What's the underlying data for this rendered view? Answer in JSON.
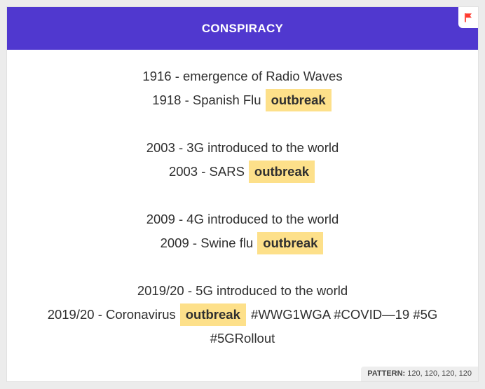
{
  "header": {
    "title": "CONSPIRACY",
    "flag_icon_color": "#ff3b30",
    "color": "#5038cf"
  },
  "entries": [
    {
      "line1": "1916 - emergence of Radio Waves",
      "line2_text": "1918 - Spanish Flu",
      "highlight": "outbreak"
    },
    {
      "line1": "2003 - 3G introduced to the world",
      "line2_text": "2003 - SARS",
      "highlight": "outbreak"
    },
    {
      "line1": "2009 - 4G introduced to the world",
      "line2_text": "2009 - Swine flu",
      "highlight": "outbreak"
    },
    {
      "line1": "2019/20 - 5G introduced to the world",
      "line2_text": "2019/20 - Coronavirus",
      "highlight": "outbreak",
      "line2_suffix": "#WWG1WGA #COVID—19 #5G",
      "line3": "#5GRollout"
    }
  ],
  "highlight_color": "#fde08a",
  "footer": {
    "pattern_label": "PATTERN:",
    "pattern_value": "120, 120, 120, 120"
  }
}
